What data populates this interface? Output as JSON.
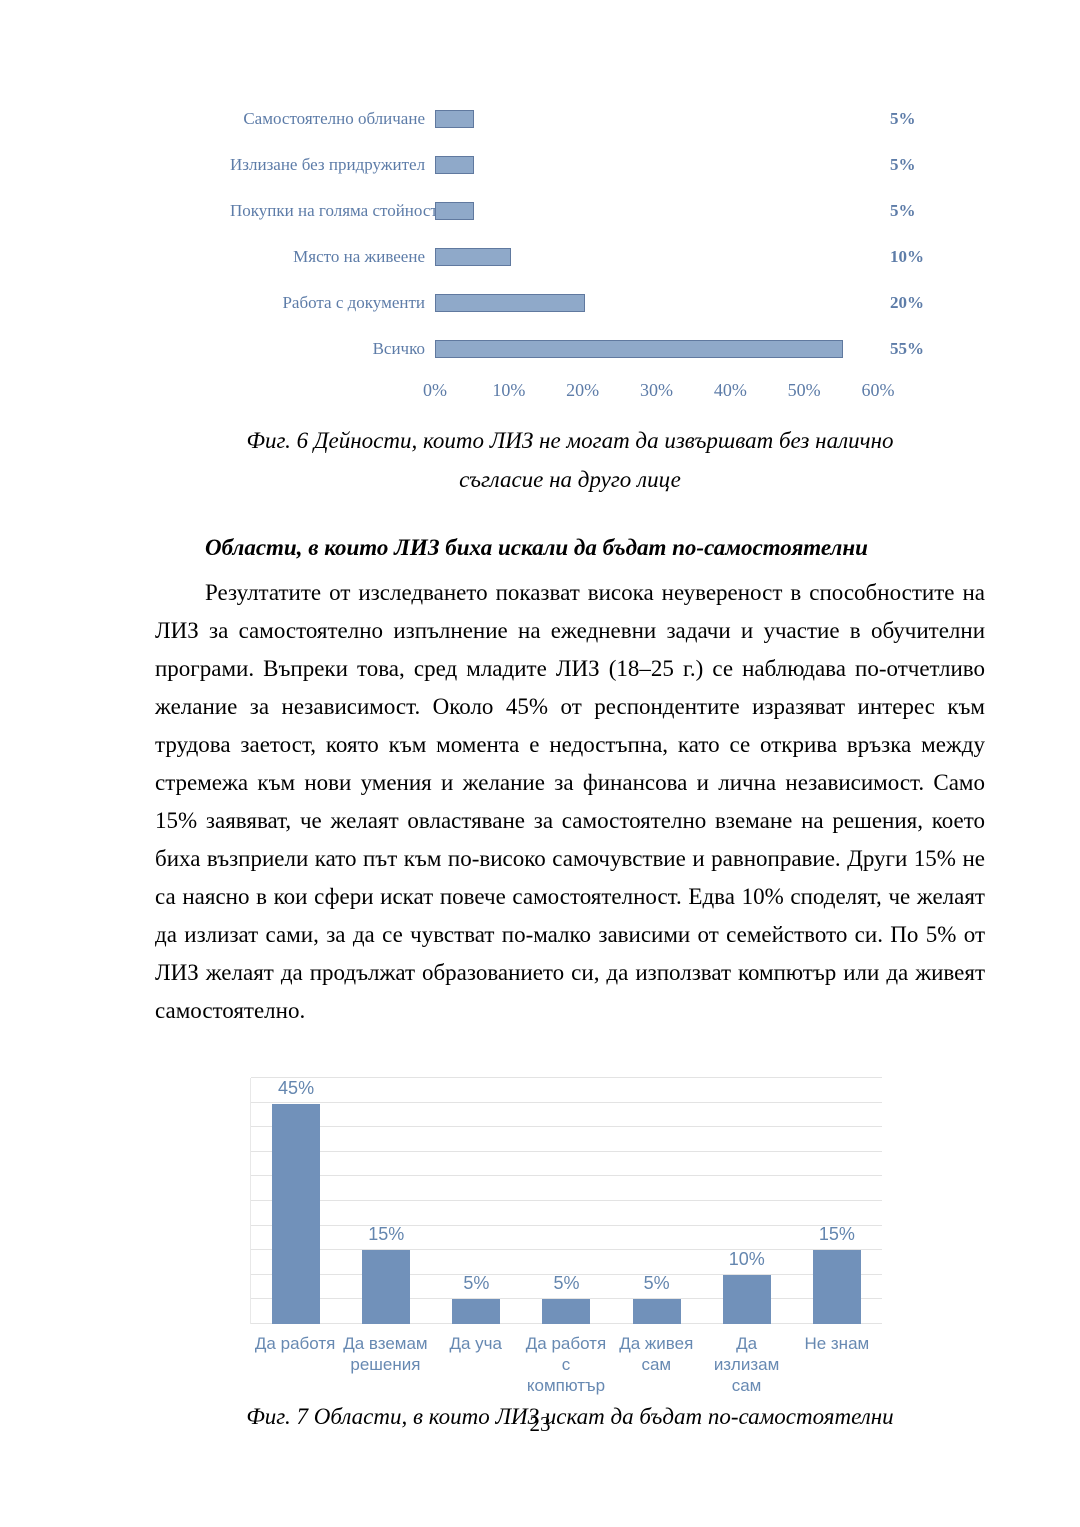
{
  "page": {
    "number": "23"
  },
  "colors": {
    "top_bar_fill": "#8fa9c9",
    "top_bar_border": "#60799f",
    "top_chart_text": "#5d7ca8",
    "bottom_bar_fill": "#7191ba",
    "bottom_chart_text": "#6789b2",
    "gridline": "#e3e3e3",
    "body_text": "#000000"
  },
  "chart_data": [
    {
      "type": "bar",
      "orientation": "horizontal",
      "categories": [
        "Самостоятелно обличане",
        "Излизане без придружител",
        "Покупки на голяма стойност",
        "Място на живеене",
        "Работа с документи",
        "Всичко"
      ],
      "values": [
        5,
        5,
        5,
        10,
        20,
        55
      ],
      "value_labels": [
        "5%",
        "5%",
        "5%",
        "10%",
        "20%",
        "55%"
      ],
      "xlim": [
        0,
        60
      ],
      "x_ticks": [
        0,
        10,
        20,
        30,
        40,
        50,
        60
      ],
      "x_tick_labels": [
        "0%",
        "10%",
        "20%",
        "30%",
        "40%",
        "50%",
        "60%"
      ],
      "grid": false,
      "legend": "none",
      "caption_lines": [
        "Фиг. 6 Дейности, които ЛИЗ не могат да извършват без налично",
        "съгласие на друго лице"
      ]
    },
    {
      "type": "bar",
      "orientation": "vertical",
      "categories": [
        "Да работя",
        "Да вземам решения",
        "Да уча",
        "Да работя с компютър",
        "Да живея сам",
        "Да излизам сам",
        "Не знам"
      ],
      "values": [
        45,
        15,
        5,
        5,
        5,
        10,
        15
      ],
      "value_labels": [
        "45%",
        "15%",
        "5%",
        "5%",
        "5%",
        "10%",
        "15%"
      ],
      "ylim": [
        0,
        50
      ],
      "gridline_step": 5,
      "grid": true,
      "legend": "none",
      "caption": "Фиг. 7 Области, в които ЛИЗ искат да бъдат по-самостоятелни"
    }
  ],
  "section": {
    "heading": "Области, в които ЛИЗ биха искали да бъдат по-самостоятелни",
    "paragraph": "Резултатите от изследването показват висока неувереност в способностите на ЛИЗ за самостоятелно изпълнение на ежедневни задачи и участие в обучителни програми. Въпреки това, сред младите ЛИЗ (18–25 г.) се наблюдава по-отчетливо желание за независимост. Около 45% от респондентите изразяват интерес към трудова заетост, която към момента е недостъпна, като се открива връзка между стремежа към нови умения и желание за финансова и лична независимост. Само 15% заявяват, че желаят овластяване за самостоятелно вземане на решения, което биха възприели като път към по-високо самочувствие и равноправие. Други 15% не са наясно в кои сфери искат повече самостоятелност. Едва 10% споделят, че желаят да излизат сами, за да се чувстват по-малко зависими от семейството си. По 5% от ЛИЗ желаят да продължат образованието си, да използват компютър или да живеят самостоятелно."
  }
}
